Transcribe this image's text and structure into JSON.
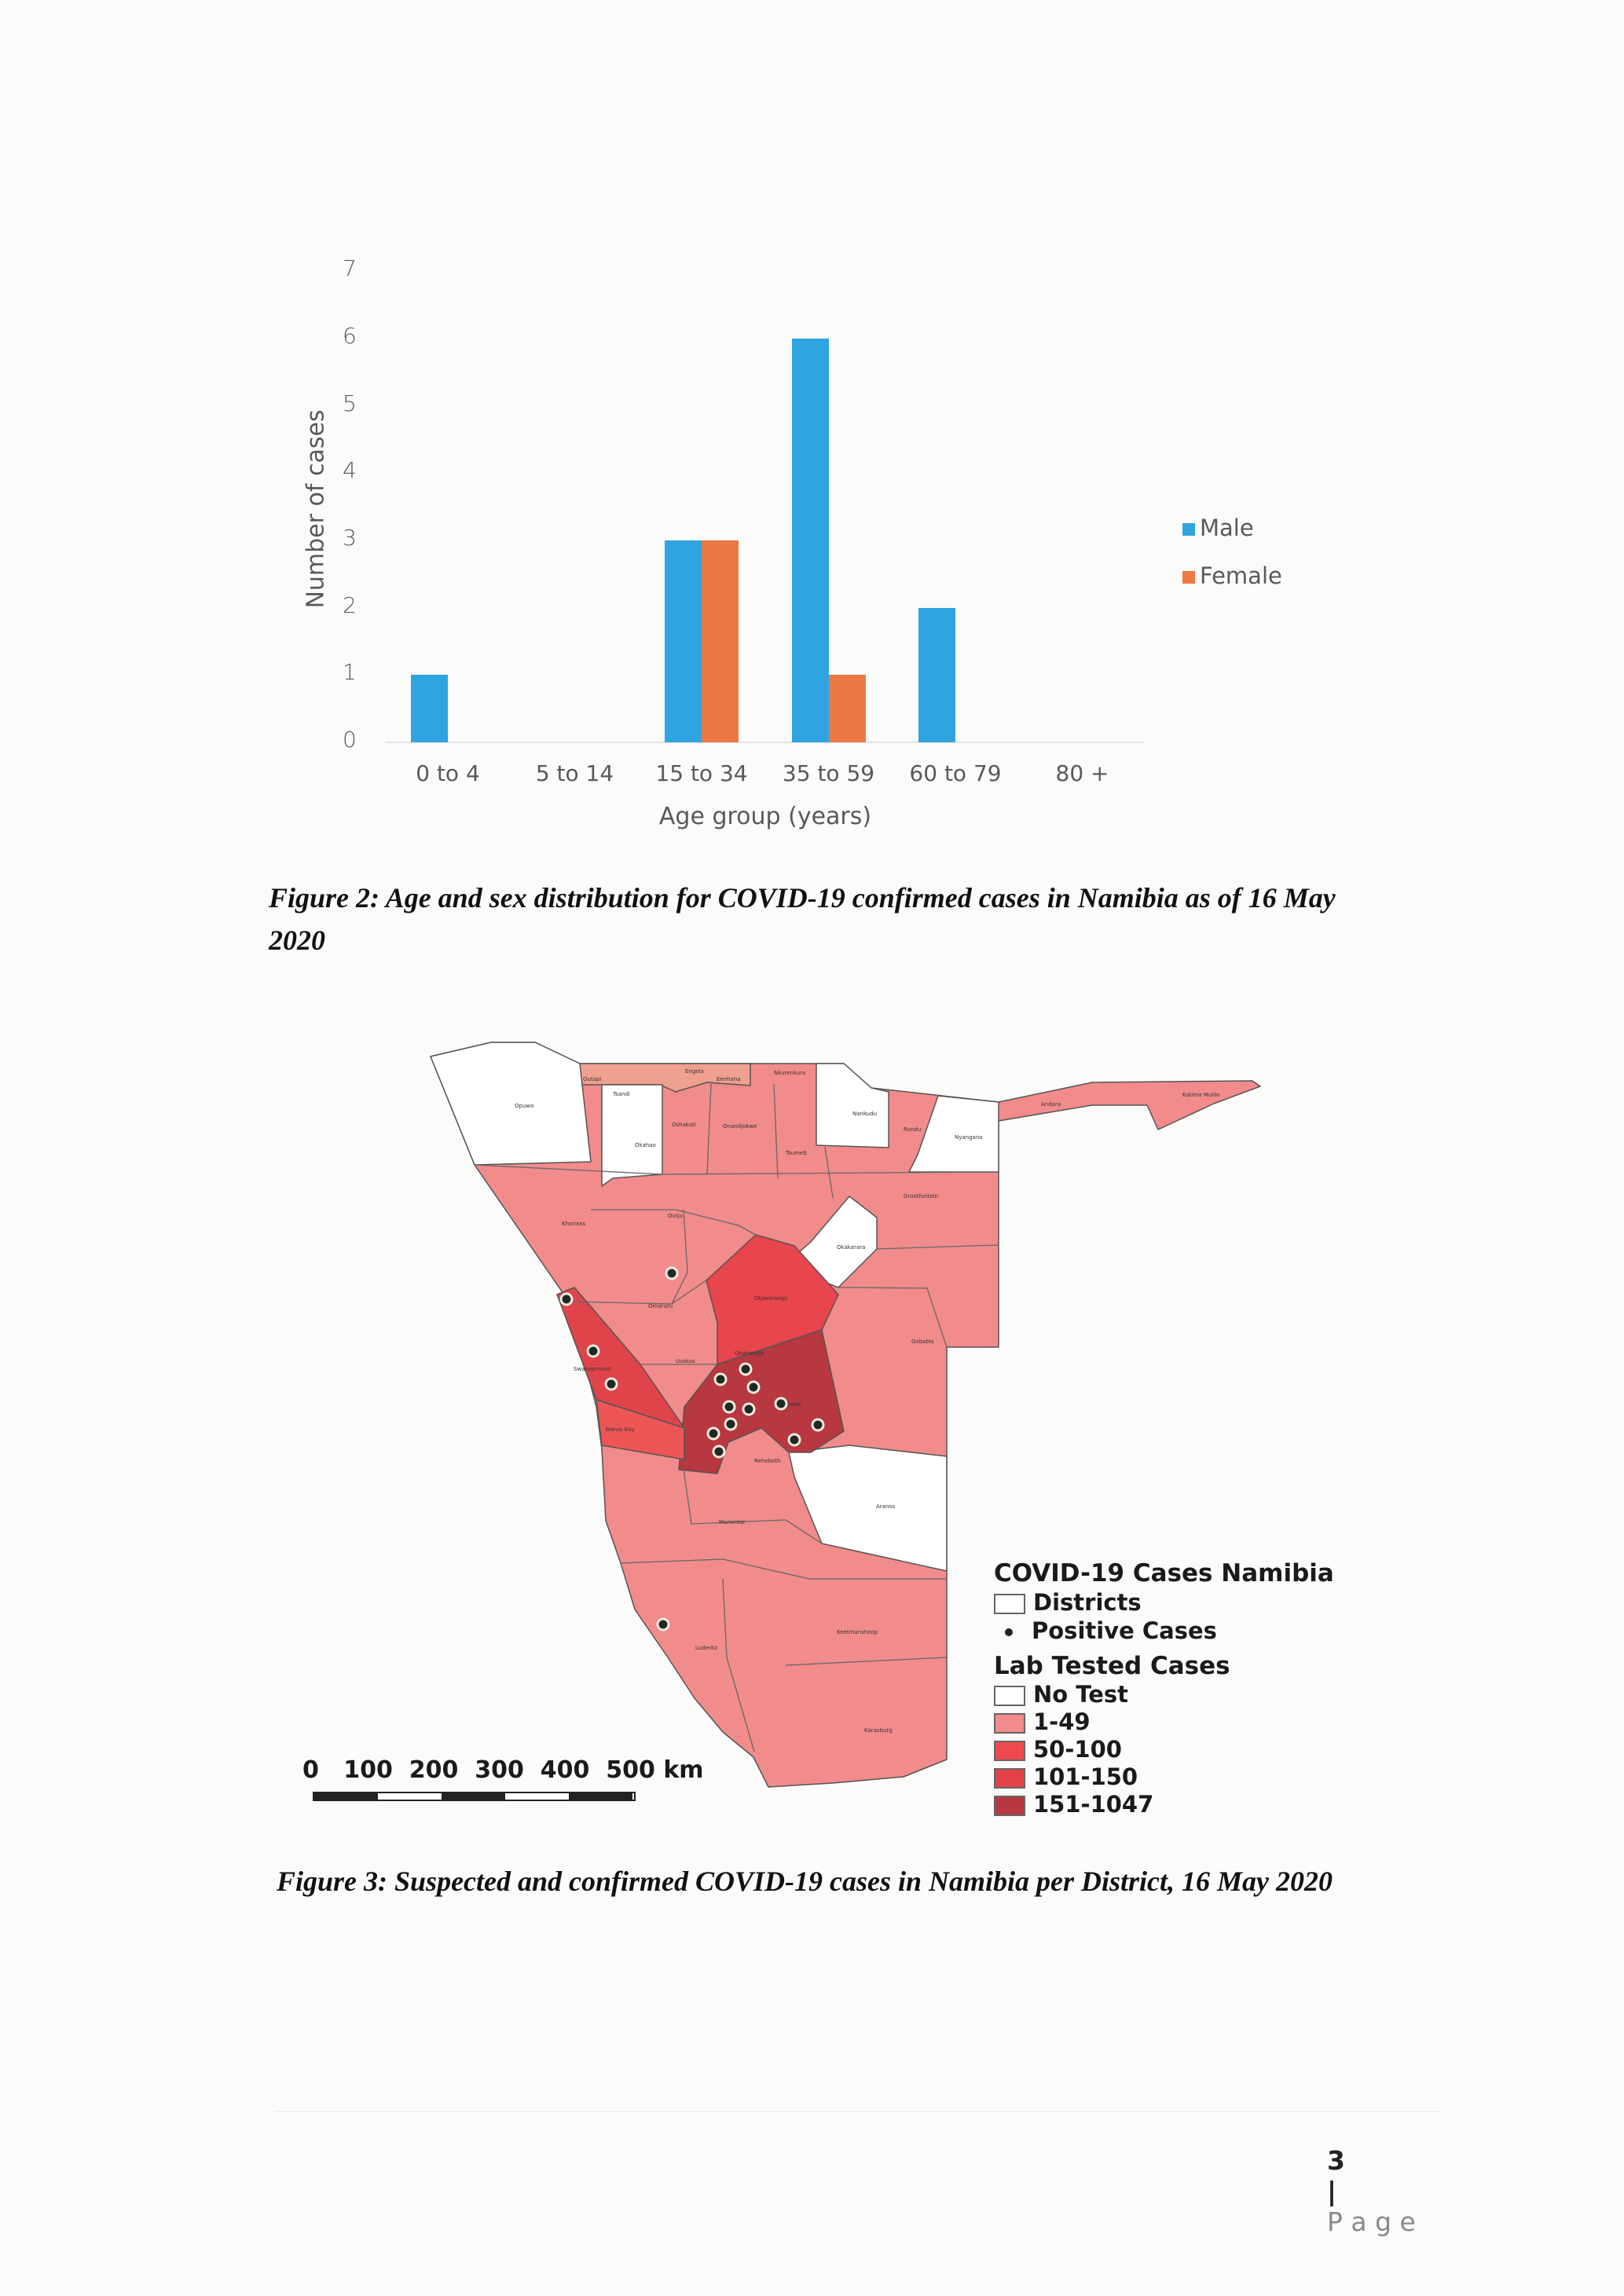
{
  "chart_data": {
    "type": "bar",
    "categories": [
      "0 to 4",
      "5 to 14",
      "15 to 34",
      "35 to 59",
      "60 to 79",
      "80 +"
    ],
    "series": [
      {
        "name": "Male",
        "values": [
          1,
          0,
          3,
          6,
          2,
          0
        ],
        "color": "#2fa4e0"
      },
      {
        "name": "Female",
        "values": [
          0,
          0,
          3,
          1,
          0,
          0
        ],
        "color": "#ec7844"
      }
    ],
    "xlabel": "Age group (years)",
    "ylabel": "Number of cases",
    "ylim": [
      0,
      7
    ],
    "yticks": [
      "0",
      "1",
      "2",
      "3",
      "4",
      "5",
      "6",
      "7"
    ],
    "legend_position": "right",
    "grid": false
  },
  "figure2_caption_line1": "Figure 2: Age and sex distribution for COVID-19 confirmed cases in Namibia as of 16 May",
  "figure2_caption_line2": "2020",
  "map": {
    "legend_title": "COVID-19 Cases Namibia",
    "districts_label": "Districts",
    "positive_label": "Positive Cases",
    "lab_title": "Lab Tested Cases",
    "classes": [
      {
        "label": "No Test",
        "color": "#ffffff"
      },
      {
        "label": "1-49",
        "color": "#f28b8b"
      },
      {
        "label": "50-100",
        "color": "#f0484f"
      },
      {
        "label": "101-150",
        "color": "#e2414a"
      },
      {
        "label": "151-1047",
        "color": "#b73840"
      }
    ],
    "scale_label": "0   100  200  300  400  500 km",
    "district_names": [
      "Opuwo",
      "Okahao",
      "Tsandi",
      "Outapi",
      "Engela",
      "Eenhana",
      "Nkurenkuru",
      "Nankudu",
      "Rundu",
      "Nyangana",
      "Andara",
      "Katima Mulilo",
      "Oshakati",
      "Onandjokwe",
      "Tsumeb",
      "Outjo",
      "Khorixas",
      "Otjiwarongo",
      "Grootfontein",
      "Okakarara",
      "Omaruru",
      "Okahandja",
      "Usakos",
      "Swakopmund",
      "Walvis Bay",
      "Windhoek",
      "Gobabis",
      "Rehoboth",
      "Aranos",
      "Mariental",
      "Keetmanshoop",
      "Luderitz",
      "Karasburg"
    ]
  },
  "figure3_caption": "Figure 3: Suspected and confirmed COVID-19 cases in Namibia per District, 16 May 2020",
  "footer": {
    "page_number": "3",
    "separator": "|",
    "page_label": "P a g e"
  }
}
